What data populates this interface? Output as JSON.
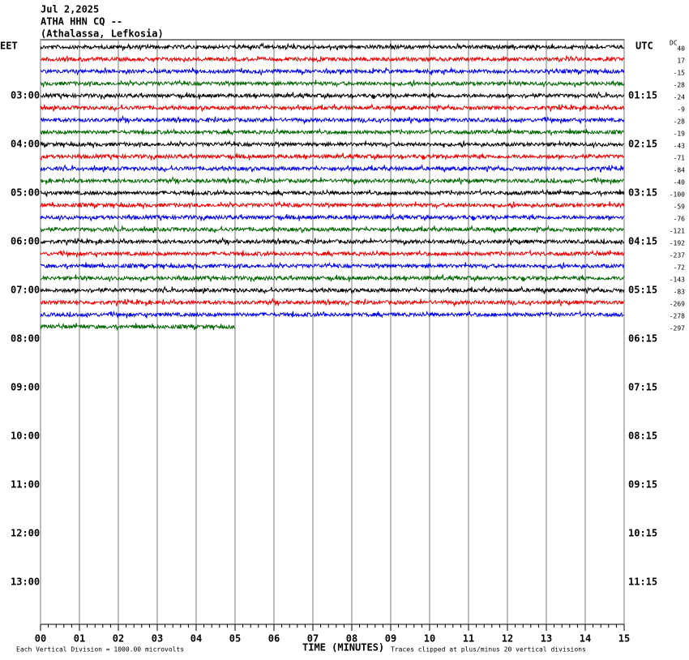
{
  "chart_data": {
    "type": "helicorder",
    "header": [
      "Jul 2,2025",
      "ATHA HHN CQ --",
      "(Athalassa, Lefkosia)"
    ],
    "left_axis_label": "EET",
    "right_axis_label": "UTC",
    "left_ticks": [
      "03:00",
      "04:00",
      "05:00",
      "06:00",
      "07:00",
      "08:00",
      "09:00",
      "10:00",
      "11:00",
      "12:00",
      "13:00"
    ],
    "right_ticks": [
      "01:15",
      "02:15",
      "03:15",
      "04:15",
      "05:15",
      "06:15",
      "07:15",
      "08:15",
      "09:15",
      "10:15",
      "11:15"
    ],
    "dc_label": "DC",
    "series": [
      {
        "color": "#000000",
        "dc": 40,
        "end": 15
      },
      {
        "color": "#ee0000",
        "dc": 17,
        "end": 15
      },
      {
        "color": "#0000ee",
        "dc": -15,
        "end": 15
      },
      {
        "color": "#006600",
        "dc": -28,
        "end": 15
      },
      {
        "color": "#000000",
        "dc": -24,
        "end": 15
      },
      {
        "color": "#ee0000",
        "dc": -9,
        "end": 15
      },
      {
        "color": "#0000ee",
        "dc": -28,
        "end": 15
      },
      {
        "color": "#006600",
        "dc": -19,
        "end": 15
      },
      {
        "color": "#000000",
        "dc": -43,
        "end": 15
      },
      {
        "color": "#ee0000",
        "dc": -71,
        "end": 15
      },
      {
        "color": "#0000ee",
        "dc": -84,
        "end": 15
      },
      {
        "color": "#006600",
        "dc": -40,
        "end": 15
      },
      {
        "color": "#000000",
        "dc": -100,
        "end": 15
      },
      {
        "color": "#ee0000",
        "dc": -59,
        "end": 15
      },
      {
        "color": "#0000ee",
        "dc": -76,
        "end": 15
      },
      {
        "color": "#006600",
        "dc": -121,
        "end": 15
      },
      {
        "color": "#000000",
        "dc": -192,
        "end": 15
      },
      {
        "color": "#ee0000",
        "dc": -237,
        "end": 15
      },
      {
        "color": "#0000ee",
        "dc": -72,
        "end": 15
      },
      {
        "color": "#006600",
        "dc": -143,
        "end": 15
      },
      {
        "color": "#000000",
        "dc": -83,
        "end": 15
      },
      {
        "color": "#ee0000",
        "dc": -269,
        "end": 15
      },
      {
        "color": "#0000ee",
        "dc": -278,
        "end": 15
      },
      {
        "color": "#006600",
        "dc": -297,
        "end": 5
      }
    ],
    "xlim": [
      0,
      15
    ],
    "xticks": [
      {
        "value": 0,
        "label": "00"
      },
      {
        "value": 1,
        "label": "01"
      },
      {
        "value": 2,
        "label": "02"
      },
      {
        "value": 3,
        "label": "03"
      },
      {
        "value": 4,
        "label": "04"
      },
      {
        "value": 5,
        "label": "05"
      },
      {
        "value": 6,
        "label": "06"
      },
      {
        "value": 7,
        "label": "07"
      },
      {
        "value": 8,
        "label": "08"
      },
      {
        "value": 9,
        "label": "09"
      },
      {
        "value": 10,
        "label": "10"
      },
      {
        "value": 11,
        "label": "11"
      },
      {
        "value": 12,
        "label": "12"
      },
      {
        "value": 13,
        "label": "13"
      },
      {
        "value": 14,
        "label": "14"
      },
      {
        "value": 15,
        "label": "15"
      }
    ],
    "xlabel": "TIME (MINUTES)",
    "footnote_left": "Each Vertical Division = 1000.00 microvolts",
    "footnote_right": "Traces clipped at plus/minus 20 vertical divisions"
  }
}
